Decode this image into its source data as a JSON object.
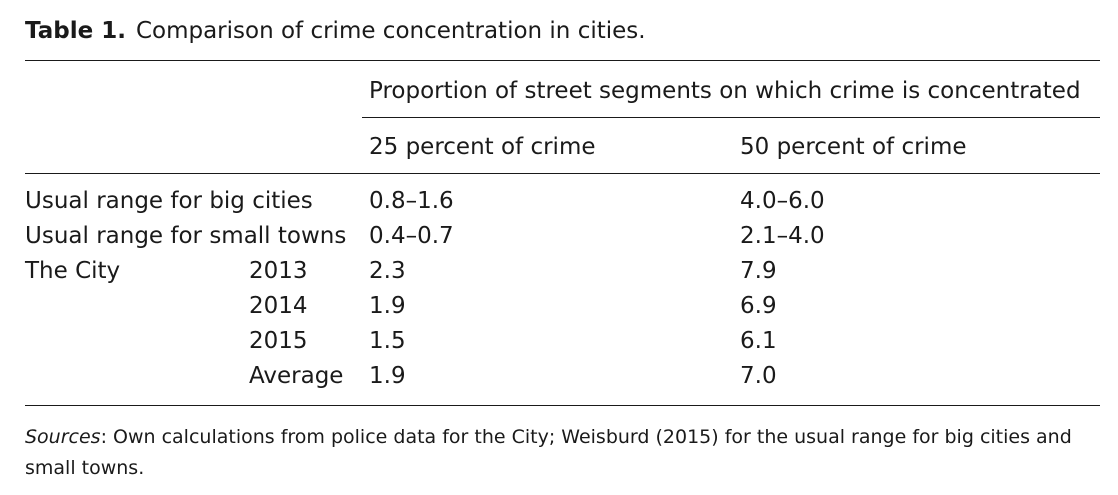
{
  "table": {
    "label": "Table 1.",
    "title": "Comparison of crime concentration in cities.",
    "spanning_header": "Proportion of street segments on which crime is concentrated",
    "columns": [
      "25 percent of crime",
      "50 percent of crime"
    ],
    "rows": [
      {
        "label": "Usual range for big cities",
        "sublabel": "",
        "c1": "0.8–1.6",
        "c2": "4.0–6.0"
      },
      {
        "label": "Usual range for small towns",
        "sublabel": "",
        "c1": "0.4–0.7",
        "c2": "2.1–4.0"
      },
      {
        "label": "The City",
        "sublabel": "2013",
        "c1": "2.3",
        "c2": "7.9"
      },
      {
        "label": "",
        "sublabel": "2014",
        "c1": "1.9",
        "c2": "6.9"
      },
      {
        "label": "",
        "sublabel": "2015",
        "c1": "1.5",
        "c2": "6.1"
      },
      {
        "label": "",
        "sublabel": "Average",
        "c1": "1.9",
        "c2": "7.0"
      }
    ],
    "source_label": "Sources",
    "source_text": ": Own calculations from police data for the City; Weisburd (2015) for the usual range for big cities and small towns."
  }
}
